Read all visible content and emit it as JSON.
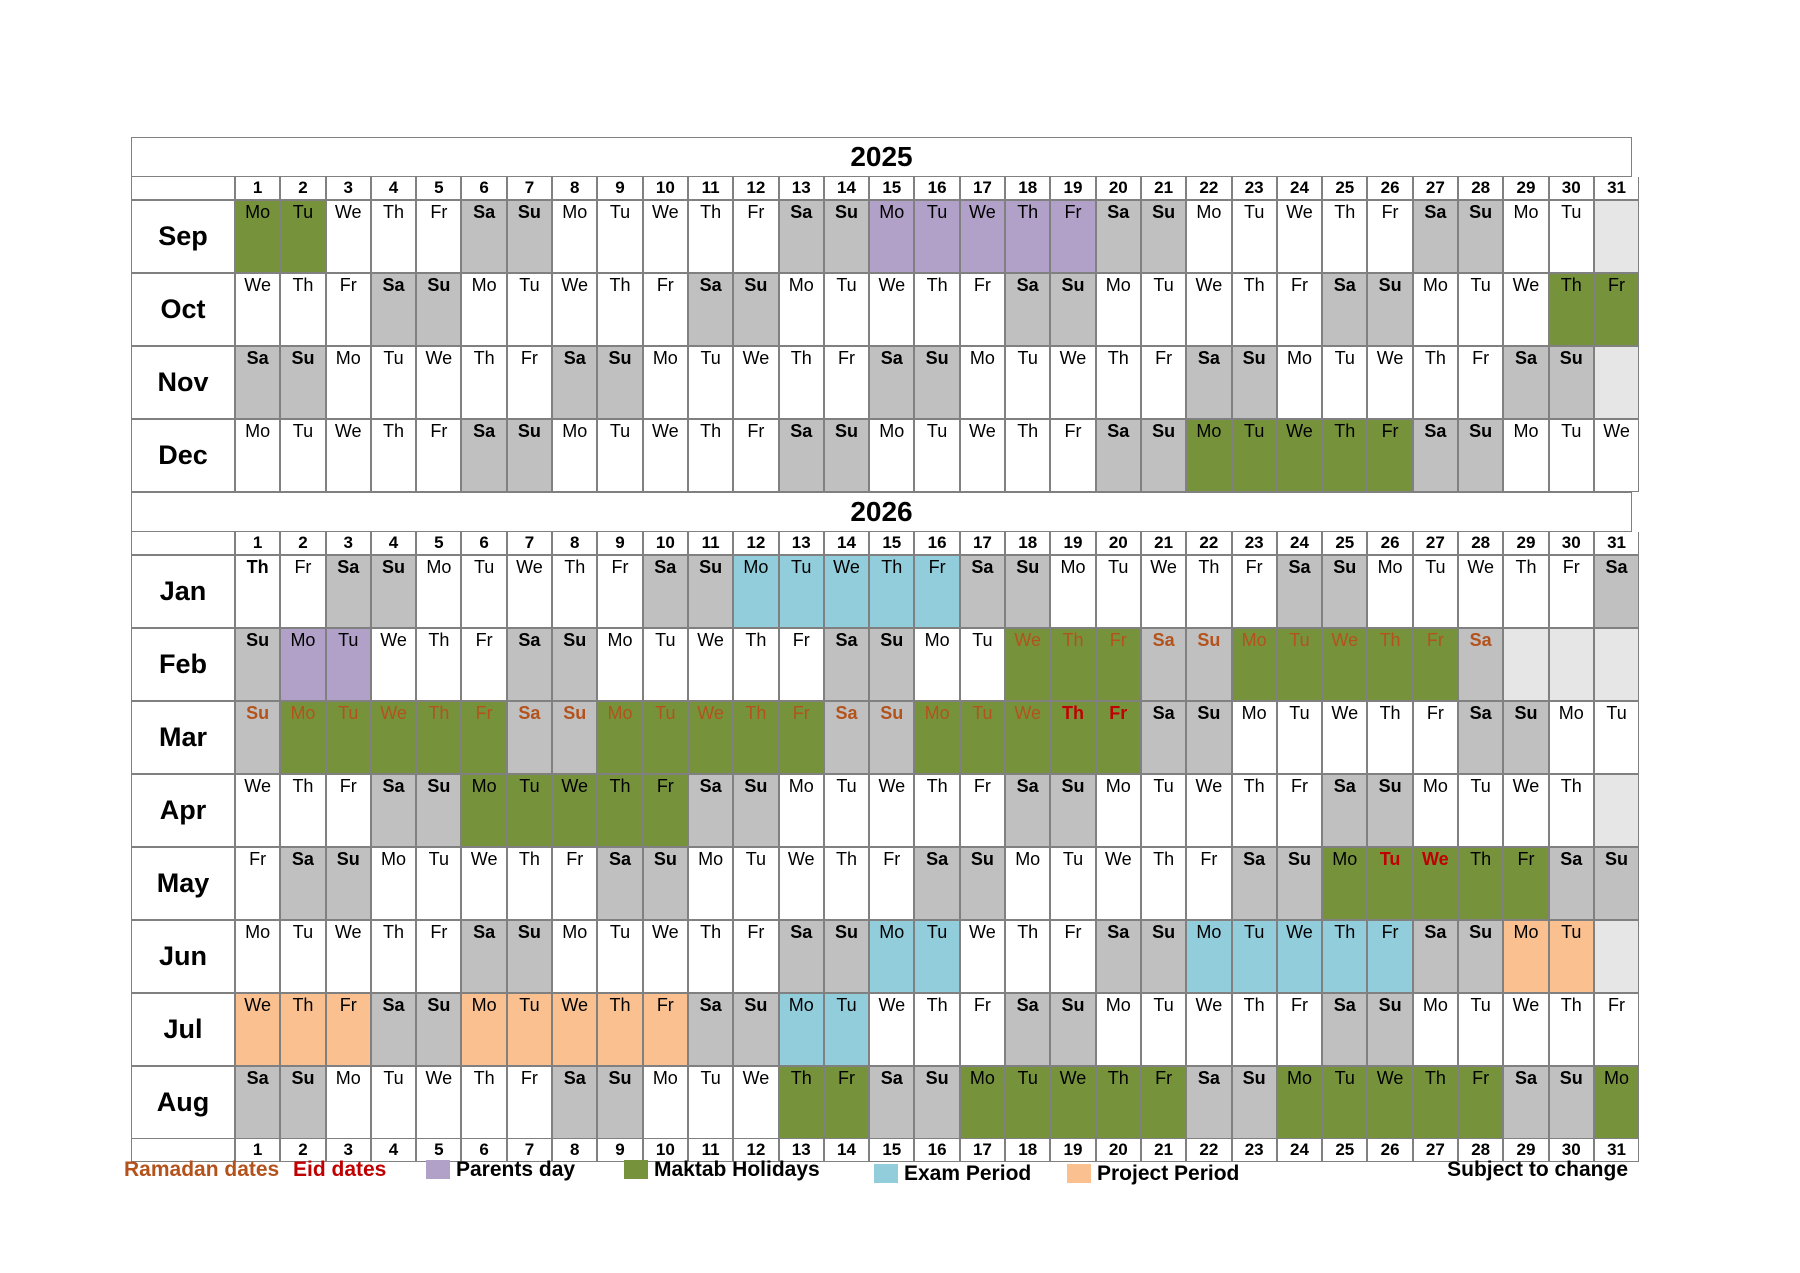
{
  "years": [
    "2025",
    "2026"
  ],
  "day_numbers": [
    "1",
    "2",
    "3",
    "4",
    "5",
    "6",
    "7",
    "8",
    "9",
    "10",
    "11",
    "12",
    "13",
    "14",
    "15",
    "16",
    "17",
    "18",
    "19",
    "20",
    "21",
    "22",
    "23",
    "24",
    "25",
    "26",
    "27",
    "28",
    "29",
    "30",
    "31"
  ],
  "sections": [
    {
      "year": "2025",
      "months": [
        {
          "name": "Sep",
          "days": [
            "Mo",
            "Tu",
            "We",
            "Th",
            "Fr",
            "Sa",
            "Su",
            "Mo",
            "Tu",
            "We",
            "Th",
            "Fr",
            "Sa",
            "Su",
            "Mo",
            "Tu",
            "We",
            "Th",
            "Fr",
            "Sa",
            "Su",
            "Mo",
            "Tu",
            "We",
            "Th",
            "Fr",
            "Sa",
            "Su",
            "Mo",
            "Tu",
            ""
          ],
          "fills": {
            "1": "g",
            "2": "g",
            "15": "p",
            "16": "p",
            "17": "p",
            "18": "p",
            "19": "p",
            "31": "x"
          }
        },
        {
          "name": "Oct",
          "days": [
            "We",
            "Th",
            "Fr",
            "Sa",
            "Su",
            "Mo",
            "Tu",
            "We",
            "Th",
            "Fr",
            "Sa",
            "Su",
            "Mo",
            "Tu",
            "We",
            "Th",
            "Fr",
            "Sa",
            "Su",
            "Mo",
            "Tu",
            "We",
            "Th",
            "Fr",
            "Sa",
            "Su",
            "Mo",
            "Tu",
            "We",
            "Th",
            "Fr"
          ],
          "fills": {
            "30": "g",
            "31": "g"
          }
        },
        {
          "name": "Nov",
          "days": [
            "Sa",
            "Su",
            "Mo",
            "Tu",
            "We",
            "Th",
            "Fr",
            "Sa",
            "Su",
            "Mo",
            "Tu",
            "We",
            "Th",
            "Fr",
            "Sa",
            "Su",
            "Mo",
            "Tu",
            "We",
            "Th",
            "Fr",
            "Sa",
            "Su",
            "Mo",
            "Tu",
            "We",
            "Th",
            "Fr",
            "Sa",
            "Su",
            ""
          ],
          "fills": {
            "31": "x"
          }
        },
        {
          "name": "Dec",
          "days": [
            "Mo",
            "Tu",
            "We",
            "Th",
            "Fr",
            "Sa",
            "Su",
            "Mo",
            "Tu",
            "We",
            "Th",
            "Fr",
            "Sa",
            "Su",
            "Mo",
            "Tu",
            "We",
            "Th",
            "Fr",
            "Sa",
            "Su",
            "Mo",
            "Tu",
            "We",
            "Th",
            "Fr",
            "Sa",
            "Su",
            "Mo",
            "Tu",
            "We"
          ],
          "fills": {
            "22": "g",
            "23": "g",
            "24": "g",
            "25": "g",
            "26": "g"
          }
        }
      ]
    },
    {
      "year": "2026",
      "months": [
        {
          "name": "Jan",
          "days": [
            "Th",
            "Fr",
            "Sa",
            "Su",
            "Mo",
            "Tu",
            "We",
            "Th",
            "Fr",
            "Sa",
            "Su",
            "Mo",
            "Tu",
            "We",
            "Th",
            "Fr",
            "Sa",
            "Su",
            "Mo",
            "Tu",
            "We",
            "Th",
            "Fr",
            "Sa",
            "Su",
            "Mo",
            "Tu",
            "We",
            "Th",
            "Fr",
            "Sa"
          ],
          "fills": {
            "12": "b",
            "13": "b",
            "14": "b",
            "15": "b",
            "16": "b"
          }
        },
        {
          "name": "Feb",
          "days": [
            "Su",
            "Mo",
            "Tu",
            "We",
            "Th",
            "Fr",
            "Sa",
            "Su",
            "Mo",
            "Tu",
            "We",
            "Th",
            "Fr",
            "Sa",
            "Su",
            "Mo",
            "Tu",
            "We",
            "Th",
            "Fr",
            "Sa",
            "Su",
            "Mo",
            "Tu",
            "We",
            "Th",
            "Fr",
            "Sa",
            "",
            "",
            ""
          ],
          "fills": {
            "2": "p",
            "3": "p",
            "18": "g",
            "19": "g",
            "20": "g",
            "23": "g",
            "24": "g",
            "25": "g",
            "26": "g",
            "27": "g",
            "29": "x",
            "30": "x",
            "31": "x"
          },
          "ramadan": [
            18,
            19,
            20,
            21,
            22,
            23,
            24,
            25,
            26,
            27,
            28
          ]
        },
        {
          "name": "Mar",
          "days": [
            "Su",
            "Mo",
            "Tu",
            "We",
            "Th",
            "Fr",
            "Sa",
            "Su",
            "Mo",
            "Tu",
            "We",
            "Th",
            "Fr",
            "Sa",
            "Su",
            "Mo",
            "Tu",
            "We",
            "Th",
            "Fr",
            "Sa",
            "Su",
            "Mo",
            "Tu",
            "We",
            "Th",
            "Fr",
            "Sa",
            "Su",
            "Mo",
            "Tu"
          ],
          "fills": {
            "2": "g",
            "3": "g",
            "4": "g",
            "5": "g",
            "6": "g",
            "9": "g",
            "10": "g",
            "11": "g",
            "12": "g",
            "13": "g",
            "16": "g",
            "17": "g",
            "18": "g",
            "19": "g",
            "20": "g"
          },
          "ramadan": [
            1,
            2,
            3,
            4,
            5,
            6,
            7,
            8,
            9,
            10,
            11,
            12,
            13,
            14,
            15,
            16,
            17,
            18
          ],
          "eid": [
            19,
            20
          ]
        },
        {
          "name": "Apr",
          "days": [
            "We",
            "Th",
            "Fr",
            "Sa",
            "Su",
            "Mo",
            "Tu",
            "We",
            "Th",
            "Fr",
            "Sa",
            "Su",
            "Mo",
            "Tu",
            "We",
            "Th",
            "Fr",
            "Sa",
            "Su",
            "Mo",
            "Tu",
            "We",
            "Th",
            "Fr",
            "Sa",
            "Su",
            "Mo",
            "Tu",
            "We",
            "Th",
            ""
          ],
          "fills": {
            "6": "g",
            "7": "g",
            "8": "g",
            "9": "g",
            "10": "g",
            "31": "x"
          }
        },
        {
          "name": "May",
          "days": [
            "Fr",
            "Sa",
            "Su",
            "Mo",
            "Tu",
            "We",
            "Th",
            "Fr",
            "Sa",
            "Su",
            "Mo",
            "Tu",
            "We",
            "Th",
            "Fr",
            "Sa",
            "Su",
            "Mo",
            "Tu",
            "We",
            "Th",
            "Fr",
            "Sa",
            "Su",
            "Mo",
            "Tu",
            "We",
            "Th",
            "Fr",
            "Sa",
            "Su"
          ],
          "fills": {
            "25": "g",
            "26": "g",
            "27": "g",
            "28": "g",
            "29": "g"
          },
          "eid": [
            26,
            27
          ]
        },
        {
          "name": "Jun",
          "days": [
            "Mo",
            "Tu",
            "We",
            "Th",
            "Fr",
            "Sa",
            "Su",
            "Mo",
            "Tu",
            "We",
            "Th",
            "Fr",
            "Sa",
            "Su",
            "Mo",
            "Tu",
            "We",
            "Th",
            "Fr",
            "Sa",
            "Su",
            "Mo",
            "Tu",
            "We",
            "Th",
            "Fr",
            "Sa",
            "Su",
            "Mo",
            "Tu",
            ""
          ],
          "fills": {
            "15": "b",
            "16": "b",
            "22": "b",
            "23": "b",
            "24": "b",
            "25": "b",
            "26": "b",
            "29": "o",
            "30": "o",
            "31": "x"
          }
        },
        {
          "name": "Jul",
          "days": [
            "We",
            "Th",
            "Fr",
            "Sa",
            "Su",
            "Mo",
            "Tu",
            "We",
            "Th",
            "Fr",
            "Sa",
            "Su",
            "Mo",
            "Tu",
            "We",
            "Th",
            "Fr",
            "Sa",
            "Su",
            "Mo",
            "Tu",
            "We",
            "Th",
            "Fr",
            "Sa",
            "Su",
            "Mo",
            "Tu",
            "We",
            "Th",
            "Fr"
          ],
          "fills": {
            "1": "o",
            "2": "o",
            "3": "o",
            "6": "o",
            "7": "o",
            "8": "o",
            "9": "o",
            "10": "o",
            "13": "b",
            "14": "b"
          }
        },
        {
          "name": "Aug",
          "days": [
            "Sa",
            "Su",
            "Mo",
            "Tu",
            "We",
            "Th",
            "Fr",
            "Sa",
            "Su",
            "Mo",
            "Tu",
            "We",
            "Th",
            "Fr",
            "Sa",
            "Su",
            "Mo",
            "Tu",
            "We",
            "Th",
            "Fr",
            "Sa",
            "Su",
            "Mo",
            "Tu",
            "We",
            "Th",
            "Fr",
            "Sa",
            "Su",
            "Mo"
          ],
          "fills": {
            "13": "g",
            "14": "g",
            "17": "g",
            "18": "g",
            "19": "g",
            "20": "g",
            "21": "g",
            "24": "g",
            "25": "g",
            "26": "g",
            "27": "g",
            "28": "g",
            "31": "g"
          }
        }
      ]
    }
  ],
  "legend": {
    "ramadan": "Ramadan dates",
    "eid": "Eid dates",
    "parents": "Parents day",
    "maktab": "Maktab Holidays",
    "exam": "Exam Period",
    "project": "Project Period",
    "note": "Subject to change"
  },
  "colors": {
    "weekend": "#c0c0c0",
    "maktab": "#76933c",
    "parents": "#b1a0c7",
    "exam": "#92cddc",
    "project": "#fac090",
    "ramadan_text": "#b4521c",
    "eid_text": "#c00000"
  }
}
